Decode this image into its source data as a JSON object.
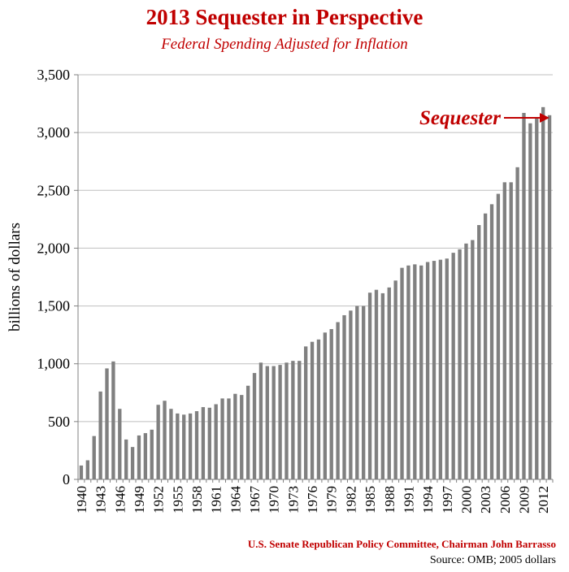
{
  "title": "2013 Sequester in Perspective",
  "subtitle": "Federal Spending Adjusted for Inflation",
  "credit": "U.S. Senate Republican Policy Committee, Chairman John Barrasso",
  "source": "Source: OMB; 2005 dollars",
  "colors": {
    "bar": "#808080",
    "accent": "#c00000",
    "axis": "#808080",
    "grid": "#bfbfbf"
  },
  "chart_data": {
    "type": "bar",
    "title": "2013 Sequester in Perspective",
    "subtitle": "Federal Spending Adjusted for Inflation",
    "xlabel": "",
    "ylabel": "billions of dollars",
    "ylim": [
      0,
      3500
    ],
    "yticks": [
      0,
      500,
      1000,
      1500,
      2000,
      2500,
      3000,
      3500
    ],
    "ytick_labels": [
      "0",
      "500",
      "1,000",
      "1,500",
      "2,000",
      "2,500",
      "3,000",
      "3,500"
    ],
    "xtick_labels": [
      "1940",
      "1943",
      "1946",
      "1949",
      "1952",
      "1955",
      "1958",
      "1961",
      "1964",
      "1967",
      "1970",
      "1973",
      "1976",
      "1979",
      "1982",
      "1985",
      "1988",
      "1991",
      "1994",
      "1997",
      "2000",
      "2003",
      "2006",
      "2009",
      "2012"
    ],
    "grid": "horizontal",
    "annotation": {
      "text": "Sequester",
      "x": 2013,
      "y": 3150
    },
    "categories": [
      1940,
      1941,
      1942,
      1943,
      1944,
      1945,
      1946,
      1947,
      1948,
      1949,
      1950,
      1951,
      1952,
      1953,
      1954,
      1955,
      1956,
      1957,
      1958,
      1959,
      1960,
      1961,
      1962,
      1963,
      1964,
      1965,
      1966,
      1967,
      1968,
      1969,
      1970,
      1971,
      1972,
      1973,
      1974,
      1975,
      1976,
      1977,
      1978,
      1979,
      1980,
      1981,
      1982,
      1983,
      1984,
      1985,
      1986,
      1987,
      1988,
      1989,
      1990,
      1991,
      1992,
      1993,
      1994,
      1995,
      1996,
      1997,
      1998,
      1999,
      2000,
      2001,
      2002,
      2003,
      2004,
      2005,
      2006,
      2007,
      2008,
      2009,
      2010,
      2011,
      2012,
      2013
    ],
    "values": [
      120,
      165,
      375,
      760,
      960,
      1020,
      610,
      345,
      280,
      380,
      400,
      430,
      645,
      680,
      610,
      570,
      560,
      570,
      590,
      625,
      620,
      650,
      700,
      700,
      740,
      730,
      810,
      920,
      1010,
      980,
      980,
      990,
      1010,
      1025,
      1025,
      1150,
      1190,
      1210,
      1270,
      1300,
      1360,
      1420,
      1460,
      1500,
      1500,
      1615,
      1640,
      1610,
      1660,
      1720,
      1830,
      1850,
      1860,
      1850,
      1880,
      1890,
      1900,
      1910,
      1960,
      1990,
      2040,
      2070,
      2200,
      2300,
      2380,
      2470,
      2570,
      2570,
      2700,
      3170,
      3080,
      3120,
      3220,
      3150
    ]
  }
}
